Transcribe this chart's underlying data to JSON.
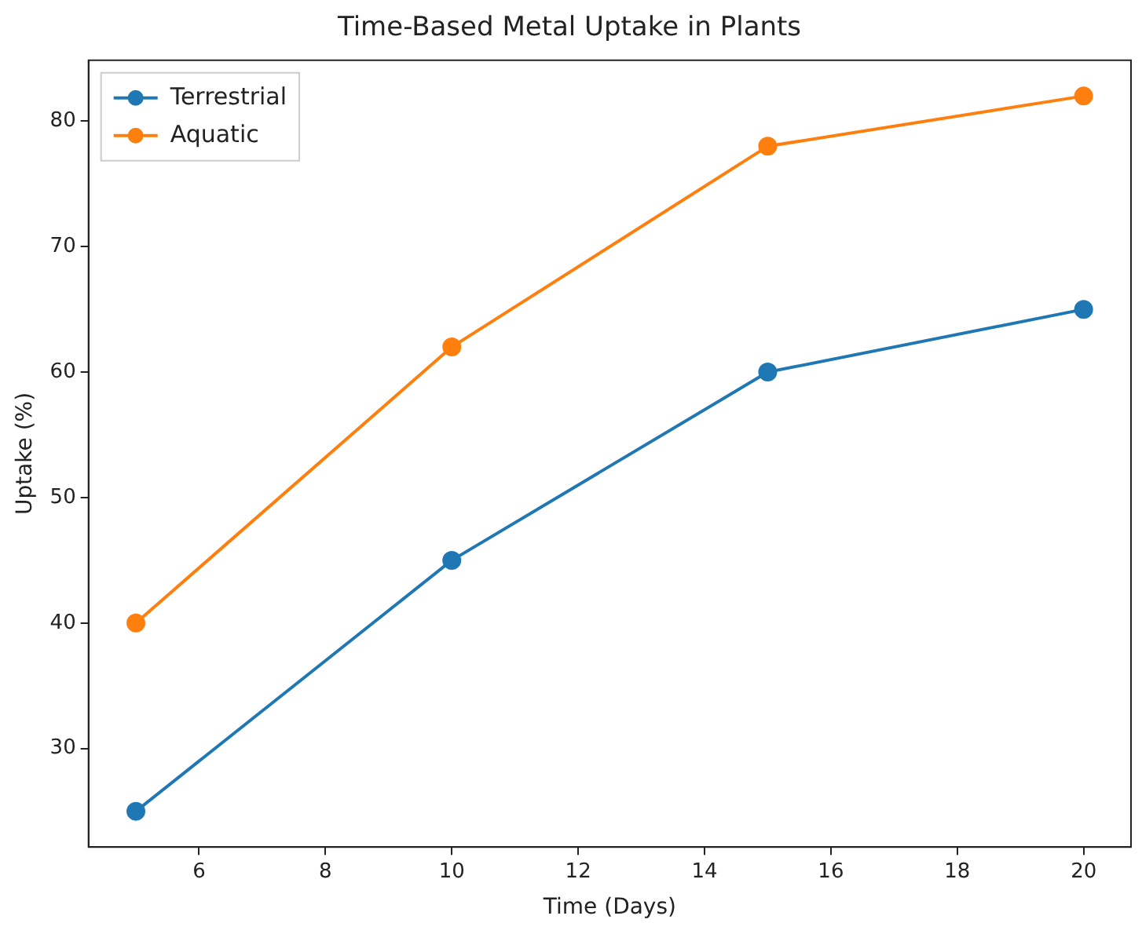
{
  "chart_data": {
    "type": "line",
    "title": "Time-Based Metal Uptake in Plants",
    "xlabel": "Time (Days)",
    "ylabel": "Uptake (%)",
    "x": [
      5,
      10,
      15,
      20
    ],
    "series": [
      {
        "name": "Terrestrial",
        "color": "#1f77b4",
        "values": [
          25,
          45,
          60,
          65
        ]
      },
      {
        "name": "Aquatic",
        "color": "#ff7f0e",
        "values": [
          40,
          62,
          78,
          82
        ]
      }
    ],
    "xlim": [
      4.25,
      20.75
    ],
    "xticks": [
      6,
      8,
      10,
      12,
      14,
      16,
      18,
      20
    ],
    "ylim": [
      22.15,
      84.85
    ],
    "yticks": [
      30,
      40,
      50,
      60,
      70,
      80
    ],
    "grid": false,
    "legend": "top left",
    "marker": "circle",
    "line_style": "solid"
  }
}
